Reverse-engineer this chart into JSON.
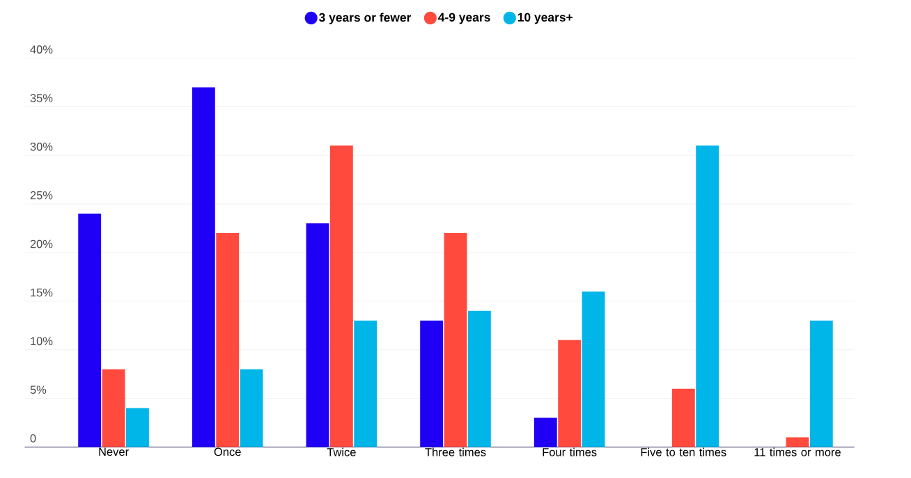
{
  "chart_data": {
    "type": "bar",
    "categories": [
      "Never",
      "Once",
      "Twice",
      "Three times",
      "Four times",
      "Five to ten times",
      "11 times or more"
    ],
    "series": [
      {
        "name": "3 years or fewer",
        "color": "#1f00f5",
        "values": [
          24,
          37,
          23,
          13,
          3,
          null,
          null
        ]
      },
      {
        "name": "4-9 years",
        "color": "#ff4a3d",
        "values": [
          8,
          22,
          31,
          22,
          11,
          6,
          1
        ]
      },
      {
        "name": "10 years+",
        "color": "#00b6e9",
        "values": [
          4,
          8,
          13,
          14,
          16,
          31,
          13
        ]
      }
    ],
    "ylim": [
      0,
      40
    ],
    "yticks": [
      0,
      {
        "value": 5,
        "label": "5%"
      },
      {
        "value": 10,
        "label": "10%"
      },
      {
        "value": 15,
        "label": "15%"
      },
      {
        "value": 20,
        "label": "20%"
      },
      {
        "value": 25,
        "label": "25%"
      },
      {
        "value": 30,
        "label": "30%"
      },
      {
        "value": 35,
        "label": "35%"
      },
      {
        "value": 40,
        "label": "40%"
      }
    ],
    "grid": "y",
    "legend": "top"
  }
}
